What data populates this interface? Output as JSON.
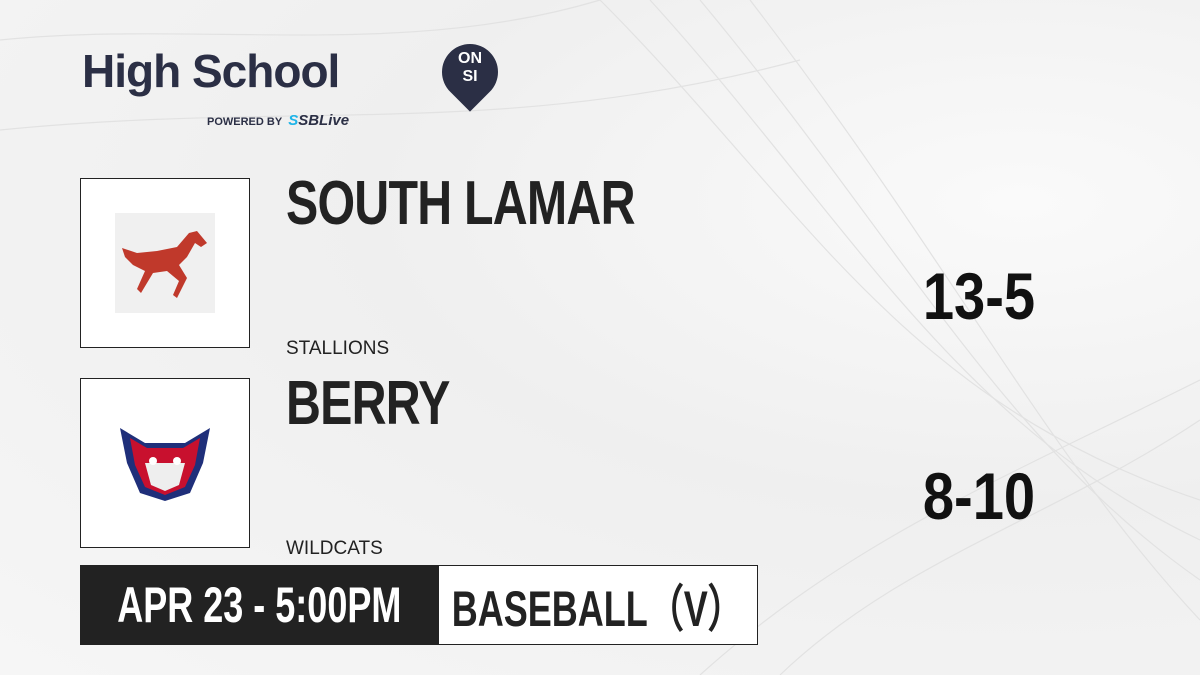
{
  "brand": {
    "title": "High School",
    "badge_top": "ON",
    "badge_bottom": "SI",
    "powered_by": "POWERED BY",
    "partner_prefix": "S",
    "partner": "SBLive"
  },
  "teams": [
    {
      "name": "SOUTH LAMAR",
      "mascot": "STALLIONS",
      "score": "13-5",
      "logo_icon": "stallion-icon",
      "color": "#c0392b"
    },
    {
      "name": "BERRY",
      "mascot": "WILDCATS",
      "score": "8-10",
      "logo_icon": "wildcat-icon",
      "color": "#1f2f7a"
    }
  ],
  "game": {
    "datetime": "APR 23 - 5:00PM",
    "sport": "BASEBALL（V）"
  }
}
